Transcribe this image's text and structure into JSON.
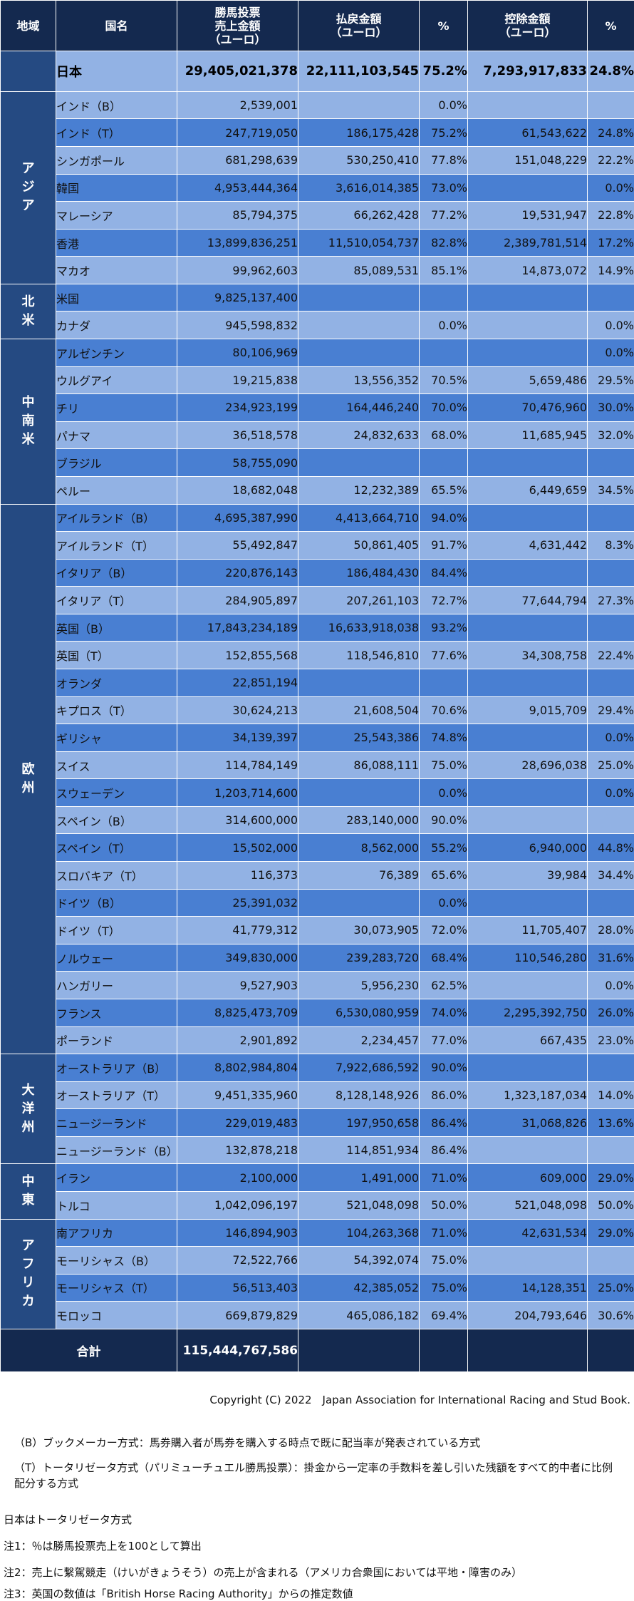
{
  "headers": {
    "region": "地域",
    "country": "国名",
    "sales": "勝馬投票\n売上金額\n（ユーロ）",
    "payout": "払戻金額\n（ユーロ）",
    "payout_pct": "%",
    "deduct": "控除金額\n（ユーロ）",
    "deduct_pct": "%"
  },
  "regions": [
    {
      "name": "",
      "rows": [
        {
          "country": "日本",
          "sales": "29,405,021,378",
          "payout": "22,111,103,545",
          "payout_pct": "75.2%",
          "deduct": "7,293,917,833",
          "deduct_pct": "24.8%",
          "emphasis": true
        }
      ]
    },
    {
      "name": "アジア",
      "rows": [
        {
          "country": "インド（B）",
          "sales": "2,539,001",
          "payout": "",
          "payout_pct": "0.0%",
          "deduct": "",
          "deduct_pct": ""
        },
        {
          "country": "インド（T）",
          "sales": "247,719,050",
          "payout": "186,175,428",
          "payout_pct": "75.2%",
          "deduct": "61,543,622",
          "deduct_pct": "24.8%"
        },
        {
          "country": "シンガポール",
          "sales": "681,298,639",
          "payout": "530,250,410",
          "payout_pct": "77.8%",
          "deduct": "151,048,229",
          "deduct_pct": "22.2%"
        },
        {
          "country": "韓国",
          "sales": "4,953,444,364",
          "payout": "3,616,014,385",
          "payout_pct": "73.0%",
          "deduct": "",
          "deduct_pct": "0.0%"
        },
        {
          "country": "マレーシア",
          "sales": "85,794,375",
          "payout": "66,262,428",
          "payout_pct": "77.2%",
          "deduct": "19,531,947",
          "deduct_pct": "22.8%"
        },
        {
          "country": "香港",
          "sales": "13,899,836,251",
          "payout": "11,510,054,737",
          "payout_pct": "82.8%",
          "deduct": "2,389,781,514",
          "deduct_pct": "17.2%"
        },
        {
          "country": "マカオ",
          "sales": "99,962,603",
          "payout": "85,089,531",
          "payout_pct": "85.1%",
          "deduct": "14,873,072",
          "deduct_pct": "14.9%"
        }
      ]
    },
    {
      "name": "北米",
      "rows": [
        {
          "country": "米国",
          "sales": "9,825,137,400",
          "payout": "",
          "payout_pct": "",
          "deduct": "",
          "deduct_pct": ""
        },
        {
          "country": "カナダ",
          "sales": "945,598,832",
          "payout": "",
          "payout_pct": "0.0%",
          "deduct": "",
          "deduct_pct": "0.0%"
        }
      ]
    },
    {
      "name": "中南米",
      "rows": [
        {
          "country": "アルゼンチン",
          "sales": "80,106,969",
          "payout": "",
          "payout_pct": "",
          "deduct": "",
          "deduct_pct": "0.0%"
        },
        {
          "country": "ウルグアイ",
          "sales": "19,215,838",
          "payout": "13,556,352",
          "payout_pct": "70.5%",
          "deduct": "5,659,486",
          "deduct_pct": "29.5%"
        },
        {
          "country": "チリ",
          "sales": "234,923,199",
          "payout": "164,446,240",
          "payout_pct": "70.0%",
          "deduct": "70,476,960",
          "deduct_pct": "30.0%"
        },
        {
          "country": "パナマ",
          "sales": "36,518,578",
          "payout": "24,832,633",
          "payout_pct": "68.0%",
          "deduct": "11,685,945",
          "deduct_pct": "32.0%"
        },
        {
          "country": "ブラジル",
          "sales": "58,755,090",
          "payout": "",
          "payout_pct": "",
          "deduct": "",
          "deduct_pct": ""
        },
        {
          "country": "ペルー",
          "sales": "18,682,048",
          "payout": "12,232,389",
          "payout_pct": "65.5%",
          "deduct": "6,449,659",
          "deduct_pct": "34.5%"
        }
      ]
    },
    {
      "name": "欧州",
      "rows": [
        {
          "country": "アイルランド（B）",
          "sales": "4,695,387,990",
          "payout": "4,413,664,710",
          "payout_pct": "94.0%",
          "deduct": "",
          "deduct_pct": ""
        },
        {
          "country": "アイルランド（T）",
          "sales": "55,492,847",
          "payout": "50,861,405",
          "payout_pct": "91.7%",
          "deduct": "4,631,442",
          "deduct_pct": "8.3%"
        },
        {
          "country": "イタリア（B）",
          "sales": "220,876,143",
          "payout": "186,484,430",
          "payout_pct": "84.4%",
          "deduct": "",
          "deduct_pct": ""
        },
        {
          "country": "イタリア（T）",
          "sales": "284,905,897",
          "payout": "207,261,103",
          "payout_pct": "72.7%",
          "deduct": "77,644,794",
          "deduct_pct": "27.3%"
        },
        {
          "country": "英国（B）",
          "sales": "17,843,234,189",
          "payout": "16,633,918,038",
          "payout_pct": "93.2%",
          "deduct": "",
          "deduct_pct": ""
        },
        {
          "country": "英国（T）",
          "sales": "152,855,568",
          "payout": "118,546,810",
          "payout_pct": "77.6%",
          "deduct": "34,308,758",
          "deduct_pct": "22.4%"
        },
        {
          "country": "オランダ",
          "sales": "22,851,194",
          "payout": "",
          "payout_pct": "",
          "deduct": "",
          "deduct_pct": ""
        },
        {
          "country": "キプロス（T）",
          "sales": "30,624,213",
          "payout": "21,608,504",
          "payout_pct": "70.6%",
          "deduct": "9,015,709",
          "deduct_pct": "29.4%"
        },
        {
          "country": "ギリシャ",
          "sales": "34,139,397",
          "payout": "25,543,386",
          "payout_pct": "74.8%",
          "deduct": "",
          "deduct_pct": "0.0%"
        },
        {
          "country": "スイス",
          "sales": "114,784,149",
          "payout": "86,088,111",
          "payout_pct": "75.0%",
          "deduct": "28,696,038",
          "deduct_pct": "25.0%"
        },
        {
          "country": "スウェーデン",
          "sales": "1,203,714,600",
          "payout": "",
          "payout_pct": "0.0%",
          "deduct": "",
          "deduct_pct": "0.0%"
        },
        {
          "country": "スペイン（B）",
          "sales": "314,600,000",
          "payout": "283,140,000",
          "payout_pct": "90.0%",
          "deduct": "",
          "deduct_pct": ""
        },
        {
          "country": "スペイン（T）",
          "sales": "15,502,000",
          "payout": "8,562,000",
          "payout_pct": "55.2%",
          "deduct": "6,940,000",
          "deduct_pct": "44.8%"
        },
        {
          "country": "スロバキア（T）",
          "sales": "116,373",
          "payout": "76,389",
          "payout_pct": "65.6%",
          "deduct": "39,984",
          "deduct_pct": "34.4%"
        },
        {
          "country": "ドイツ（B）",
          "sales": "25,391,032",
          "payout": "",
          "payout_pct": "0.0%",
          "deduct": "",
          "deduct_pct": ""
        },
        {
          "country": "ドイツ（T）",
          "sales": "41,779,312",
          "payout": "30,073,905",
          "payout_pct": "72.0%",
          "deduct": "11,705,407",
          "deduct_pct": "28.0%"
        },
        {
          "country": "ノルウェー",
          "sales": "349,830,000",
          "payout": "239,283,720",
          "payout_pct": "68.4%",
          "deduct": "110,546,280",
          "deduct_pct": "31.6%"
        },
        {
          "country": "ハンガリー",
          "sales": "9,527,903",
          "payout": "5,956,230",
          "payout_pct": "62.5%",
          "deduct": "",
          "deduct_pct": "0.0%"
        },
        {
          "country": "フランス",
          "sales": "8,825,473,709",
          "payout": "6,530,080,959",
          "payout_pct": "74.0%",
          "deduct": "2,295,392,750",
          "deduct_pct": "26.0%"
        },
        {
          "country": "ポーランド",
          "sales": "2,901,892",
          "payout": "2,234,457",
          "payout_pct": "77.0%",
          "deduct": "667,435",
          "deduct_pct": "23.0%"
        }
      ]
    },
    {
      "name": "大洋州",
      "rows": [
        {
          "country": "オーストラリア（B）",
          "sales": "8,802,984,804",
          "payout": "7,922,686,592",
          "payout_pct": "90.0%",
          "deduct": "",
          "deduct_pct": ""
        },
        {
          "country": "オーストラリア（T）",
          "sales": "9,451,335,960",
          "payout": "8,128,148,926",
          "payout_pct": "86.0%",
          "deduct": "1,323,187,034",
          "deduct_pct": "14.0%"
        },
        {
          "country": "ニュージーランド",
          "sales": "229,019,483",
          "payout": "197,950,658",
          "payout_pct": "86.4%",
          "deduct": "31,068,826",
          "deduct_pct": "13.6%"
        },
        {
          "country": "ニュージーランド（B）",
          "sales": "132,878,218",
          "payout": "114,851,934",
          "payout_pct": "86.4%",
          "deduct": "",
          "deduct_pct": ""
        }
      ]
    },
    {
      "name": "中東",
      "rows": [
        {
          "country": "イラン",
          "sales": "2,100,000",
          "payout": "1,491,000",
          "payout_pct": "71.0%",
          "deduct": "609,000",
          "deduct_pct": "29.0%"
        },
        {
          "country": "トルコ",
          "sales": "1,042,096,197",
          "payout": "521,048,098",
          "payout_pct": "50.0%",
          "deduct": "521,048,098",
          "deduct_pct": "50.0%"
        }
      ]
    },
    {
      "name": "アフリカ",
      "rows": [
        {
          "country": "南アフリカ",
          "sales": "146,894,903",
          "payout": "104,263,368",
          "payout_pct": "71.0%",
          "deduct": "42,631,534",
          "deduct_pct": "29.0%"
        },
        {
          "country": "モーリシャス（B）",
          "sales": "72,522,766",
          "payout": "54,392,074",
          "payout_pct": "75.0%",
          "deduct": "",
          "deduct_pct": ""
        },
        {
          "country": "モーリシャス（T）",
          "sales": "56,513,403",
          "payout": "42,385,052",
          "payout_pct": "75.0%",
          "deduct": "14,128,351",
          "deduct_pct": "25.0%"
        },
        {
          "country": "モロッコ",
          "sales": "669,879,829",
          "payout": "465,086,182",
          "payout_pct": "69.4%",
          "deduct": "204,793,646",
          "deduct_pct": "30.6%"
        }
      ]
    }
  ],
  "total": {
    "label": "合計",
    "sales": "115,444,767,586"
  },
  "footer": {
    "copyright": "Copyright (C) 2022　Japan Association for International Racing and Stud Book.",
    "note_b": "（B）ブックメーカー方式：馬券購入者が馬券を購入する時点で既に配当率が発表されている方式",
    "note_t": "（T）トータリゼータ方式（パリミューチュエル勝馬投票）：掛金から一定率の手数料を差し引いた残額をすべて的中者に比例配分する方式",
    "japan_note": "日本はトータリゼータ方式",
    "note1": "注1：％は勝馬投票売上を100として算出",
    "note2": "注2：売上に繋駕競走（けいがきょうそう）の売上が含まれる（アメリカ合衆国においては平地・障害のみ）",
    "note3": "注3：英国の数値は「British Horse Racing Authority」からの推定数値"
  }
}
